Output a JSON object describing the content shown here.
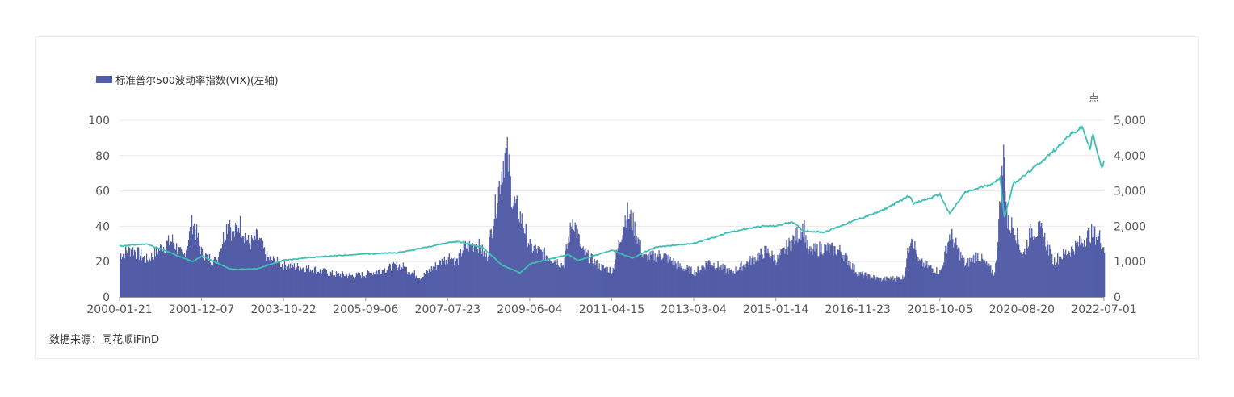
{
  "legend": {
    "label": "标准普尔500波动率指数(VIX)(左轴)"
  },
  "source": "数据来源：同花顺iFinD",
  "colors": {
    "vix_bar": "#525da7",
    "spx_line": "#3ebfb4",
    "grid": "#e8e8e8",
    "axis": "#999999"
  },
  "chart_data": {
    "type": "bar",
    "grid": true,
    "legend_position": "top-left",
    "y_left": {
      "min": 0,
      "max": 100,
      "ticks": [
        "0",
        "20",
        "40",
        "60",
        "80",
        "100"
      ]
    },
    "y_right": {
      "min": 0,
      "max": 5000,
      "unit": "点",
      "ticks": [
        "0",
        "1,000",
        "2,000",
        "3,000",
        "4,000",
        "5,000"
      ]
    },
    "x_ticks": [
      "2000-01-21",
      "2001-12-07",
      "2003-10-22",
      "2005-09-06",
      "2007-07-23",
      "2009-06-04",
      "2011-04-15",
      "2013-03-04",
      "2015-01-14",
      "2016-11-23",
      "2018-10-05",
      "2020-08-20",
      "2022-07-01"
    ],
    "x_range": [
      "2000-01-21",
      "2022-07-01"
    ],
    "series": [
      {
        "name": "标准普尔500波动率指数(VIX)(左轴)",
        "axis": "left",
        "kind": "bar",
        "points": [
          [
            "2000-01-21",
            24
          ],
          [
            "2000-05-01",
            27
          ],
          [
            "2000-09-01",
            21
          ],
          [
            "2001-01-01",
            28
          ],
          [
            "2001-04-01",
            32
          ],
          [
            "2001-07-01",
            22
          ],
          [
            "2001-09-20",
            43
          ],
          [
            "2001-12-07",
            24
          ],
          [
            "2002-04-01",
            20
          ],
          [
            "2002-07-20",
            45
          ],
          [
            "2002-08-15",
            33
          ],
          [
            "2002-10-10",
            42
          ],
          [
            "2003-01-01",
            30
          ],
          [
            "2003-03-10",
            34
          ],
          [
            "2003-06-01",
            22
          ],
          [
            "2003-10-22",
            18
          ],
          [
            "2004-06-01",
            16
          ],
          [
            "2004-12-01",
            13
          ],
          [
            "2005-06-01",
            12
          ],
          [
            "2005-09-06",
            13
          ],
          [
            "2006-06-10",
            18
          ],
          [
            "2006-12-01",
            11
          ],
          [
            "2007-03-01",
            16
          ],
          [
            "2007-07-23",
            23
          ],
          [
            "2007-10-01",
            20
          ],
          [
            "2007-11-20",
            28
          ],
          [
            "2008-03-15",
            30
          ],
          [
            "2008-06-01",
            22
          ],
          [
            "2008-10-24",
            80
          ],
          [
            "2008-11-20",
            79
          ],
          [
            "2009-01-01",
            55
          ],
          [
            "2009-03-01",
            47
          ],
          [
            "2009-06-04",
            28
          ],
          [
            "2009-11-01",
            23
          ],
          [
            "2010-03-01",
            18
          ],
          [
            "2010-05-20",
            45
          ],
          [
            "2010-08-01",
            26
          ],
          [
            "2011-01-01",
            17
          ],
          [
            "2011-04-15",
            15
          ],
          [
            "2011-08-08",
            48
          ],
          [
            "2011-10-01",
            42
          ],
          [
            "2012-01-01",
            22
          ],
          [
            "2012-06-01",
            24
          ],
          [
            "2012-11-01",
            17
          ],
          [
            "2013-03-04",
            14
          ],
          [
            "2013-06-20",
            20
          ],
          [
            "2014-01-01",
            14
          ],
          [
            "2014-10-15",
            26
          ],
          [
            "2015-01-14",
            21
          ],
          [
            "2015-08-24",
            40
          ],
          [
            "2015-10-01",
            25
          ],
          [
            "2016-01-20",
            28
          ],
          [
            "2016-06-27",
            26
          ],
          [
            "2016-11-23",
            13
          ],
          [
            "2017-06-01",
            10
          ],
          [
            "2017-12-01",
            11
          ],
          [
            "2018-02-05",
            37
          ],
          [
            "2018-04-01",
            20
          ],
          [
            "2018-10-05",
            14
          ],
          [
            "2018-12-24",
            36
          ],
          [
            "2019-05-01",
            18
          ],
          [
            "2019-08-05",
            24
          ],
          [
            "2020-01-01",
            13
          ],
          [
            "2020-03-16",
            82
          ],
          [
            "2020-04-15",
            41
          ],
          [
            "2020-06-11",
            40
          ],
          [
            "2020-08-20",
            23
          ],
          [
            "2020-10-30",
            38
          ],
          [
            "2021-01-27",
            37
          ],
          [
            "2021-05-01",
            20
          ],
          [
            "2021-12-01",
            30
          ],
          [
            "2022-03-07",
            36
          ],
          [
            "2022-05-20",
            34
          ],
          [
            "2022-07-01",
            27
          ]
        ]
      },
      {
        "name": "",
        "axis": "right",
        "kind": "line",
        "points": [
          [
            "2000-01-21",
            1440
          ],
          [
            "2000-09-01",
            1500
          ],
          [
            "2001-01-01",
            1350
          ],
          [
            "2001-09-21",
            1000
          ],
          [
            "2001-12-07",
            1160
          ],
          [
            "2002-07-23",
            800
          ],
          [
            "2002-10-09",
            780
          ],
          [
            "2003-03-11",
            800
          ],
          [
            "2003-10-22",
            1040
          ],
          [
            "2004-06-01",
            1120
          ],
          [
            "2005-09-06",
            1220
          ],
          [
            "2006-06-01",
            1250
          ],
          [
            "2007-07-23",
            1540
          ],
          [
            "2007-10-09",
            1565
          ],
          [
            "2008-05-01",
            1400
          ],
          [
            "2008-10-10",
            900
          ],
          [
            "2009-03-09",
            680
          ],
          [
            "2009-06-04",
            940
          ],
          [
            "2010-04-20",
            1200
          ],
          [
            "2010-07-01",
            1030
          ],
          [
            "2011-04-15",
            1320
          ],
          [
            "2011-10-03",
            1100
          ],
          [
            "2012-04-01",
            1400
          ],
          [
            "2013-03-04",
            1520
          ],
          [
            "2013-12-31",
            1840
          ],
          [
            "2014-09-01",
            2000
          ],
          [
            "2015-01-14",
            2010
          ],
          [
            "2015-05-21",
            2130
          ],
          [
            "2015-08-25",
            1870
          ],
          [
            "2016-02-11",
            1830
          ],
          [
            "2016-11-23",
            2200
          ],
          [
            "2017-06-01",
            2430
          ],
          [
            "2018-01-26",
            2870
          ],
          [
            "2018-03-01",
            2640
          ],
          [
            "2018-10-05",
            2900
          ],
          [
            "2018-12-24",
            2350
          ],
          [
            "2019-04-30",
            2950
          ],
          [
            "2019-12-31",
            3230
          ],
          [
            "2020-02-19",
            3390
          ],
          [
            "2020-03-23",
            2230
          ],
          [
            "2020-06-08",
            3230
          ],
          [
            "2020-08-20",
            3380
          ],
          [
            "2020-12-31",
            3760
          ],
          [
            "2021-06-01",
            4200
          ],
          [
            "2021-09-02",
            4540
          ],
          [
            "2022-01-03",
            4800
          ],
          [
            "2022-03-08",
            4170
          ],
          [
            "2022-03-29",
            4630
          ],
          [
            "2022-05-20",
            3900
          ],
          [
            "2022-06-16",
            3670
          ],
          [
            "2022-07-01",
            3830
          ]
        ]
      }
    ]
  }
}
